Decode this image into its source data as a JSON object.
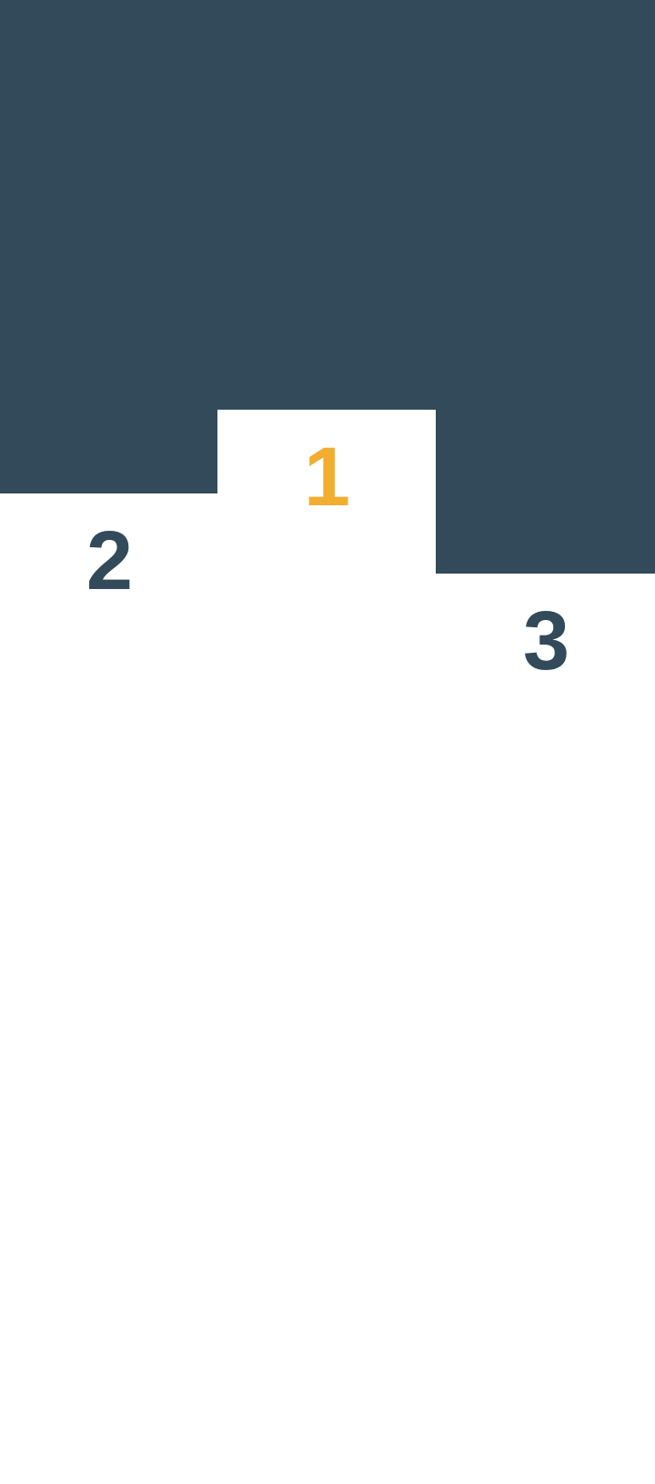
{
  "colors": {
    "backdrop": "#324a5a",
    "podium": "#ffffff",
    "first_place": "#f2ae30",
    "other_places": "#324a5a"
  },
  "podium": {
    "second": {
      "label": "2"
    },
    "first": {
      "label": "1"
    },
    "third": {
      "label": "3"
    }
  }
}
